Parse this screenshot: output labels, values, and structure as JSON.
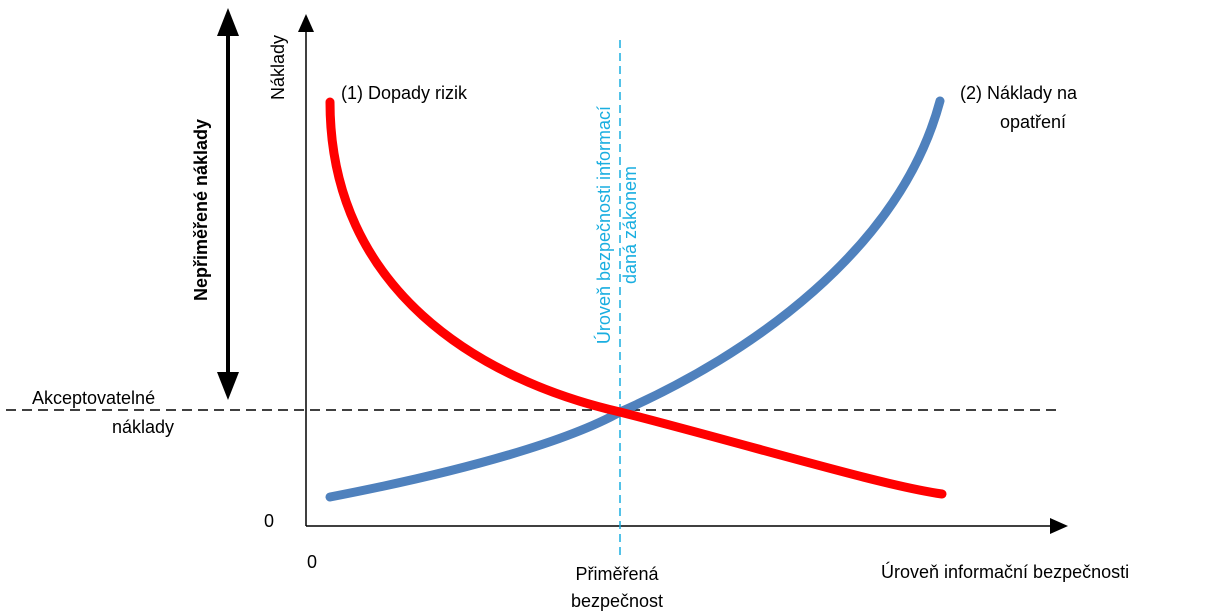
{
  "axes": {
    "y_label": "Náklady",
    "x_label": "Úroveň informační bezpečnosti",
    "y_origin": "0",
    "x_origin": "0"
  },
  "curves": {
    "risk": {
      "label": "(1) Dopady rizik",
      "color": "#ff0000"
    },
    "measures": {
      "label_line1": "(2) Náklady na",
      "label_line2": "opatření",
      "color": "#4f81bd"
    }
  },
  "acceptable_costs": {
    "line1": "Akceptovatelné",
    "line2": "náklady"
  },
  "excessive_costs": {
    "label": "Nepřiměřené náklady"
  },
  "law_level": {
    "line1": "Úroveň bezpečnosti informací",
    "line2": "daná zákonem",
    "color": "#1aaee0"
  },
  "optimal": {
    "line1": "Přiměřená",
    "line2": "bezpečnost"
  }
}
